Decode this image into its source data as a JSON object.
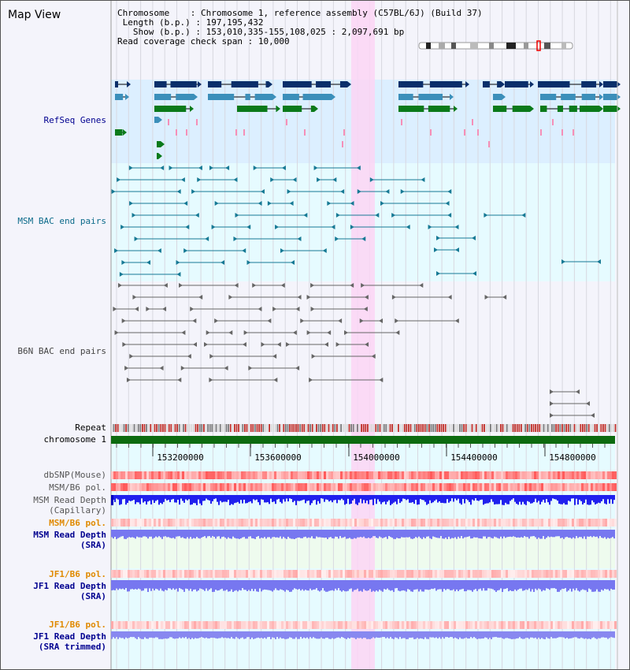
{
  "header": {
    "title": "Map View",
    "chromosome_label": "Chromosome",
    "chromosome_value": "Chromosome 1, reference assembly (C57BL/6J) (Build 37)",
    "length_label": "Length (b.p.)",
    "length_value": "197,195,432",
    "show_label": "Show (b.p.)",
    "show_value": "153,010,335-155,108,025 : 2,097,691 bp",
    "read_check_label": "Read coverage check span",
    "read_check_value": "10,000"
  },
  "tracks": {
    "refseq_genes": "RefSeq Genes",
    "msm_bac": "MSM BAC end pairs",
    "b6n_bac": "B6N BAC end pairs",
    "repeat": "Repeat",
    "chromosome": "chromosome 1",
    "dbsnp": "dbSNP(Mouse)",
    "msm_b6_pol": "MSM/B6 pol.",
    "msm_read_depth_cap_1": "MSM Read Depth",
    "msm_read_depth_cap_2": "(Capillary)",
    "msm_b6_pol_sra": "MSM/B6 pol.",
    "msm_read_depth_sra_1": "MSM Read Depth",
    "msm_read_depth_sra_2": "(SRA)",
    "jf1_b6_pol": "JF1/B6 pol.",
    "jf1_read_depth_1": "JF1 Read Depth",
    "jf1_read_depth_2": "(SRA)",
    "jf1_b6_pol_trim": "JF1/B6 pol.",
    "jf1_read_depth_trim_1": "JF1 Read Depth",
    "jf1_read_depth_trim_2": "(SRA trimmed)"
  },
  "axis": {
    "ticks": [
      "153200000",
      "153600000",
      "154000000",
      "154400000",
      "154800000"
    ]
  },
  "colors": {
    "refseq_bg": "#dcefff",
    "bac_bg": "#e6fbff",
    "highlight": "#fbd5f5",
    "gene_dark": "#0a2f6a",
    "gene_mid": "#3b8fba",
    "gene_green": "#0b7a1a",
    "msm_line": "#177a95",
    "b6n_line": "#666666",
    "chrom_bar": "#0d6b10",
    "depth_blue": "#2020ee",
    "orange_label": "#e08a00",
    "navy_label": "#000090"
  }
}
